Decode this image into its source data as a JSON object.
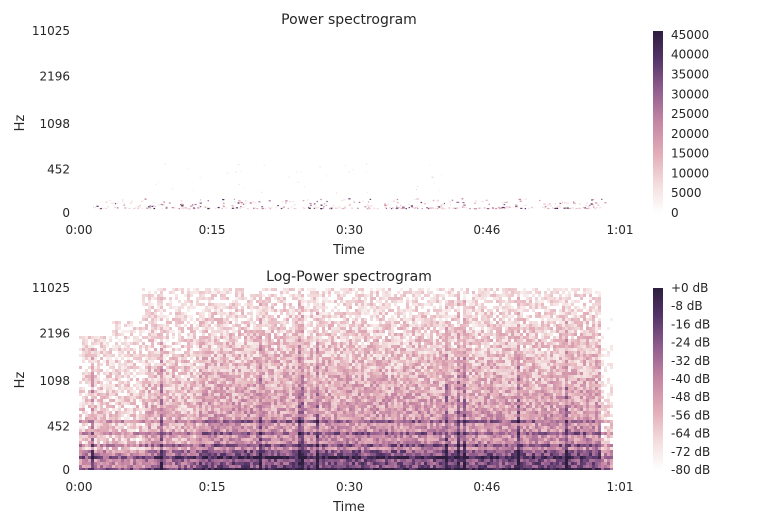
{
  "chart_data": [
    {
      "type": "heatmap",
      "title": "Power spectrogram",
      "xlabel": "Time",
      "ylabel": "Hz",
      "x_ticks": [
        "0:00",
        "0:15",
        "0:30",
        "0:46",
        "1:01"
      ],
      "x_range_seconds": [
        0,
        61
      ],
      "y_ticks": [
        "0",
        "452",
        "1098",
        "2196",
        "11025"
      ],
      "y_range_hz": [
        0,
        11025
      ],
      "y_scale": "log",
      "colorbar": {
        "ticks": [
          "0",
          "5000",
          "10000",
          "15000",
          "20000",
          "25000",
          "30000",
          "35000",
          "40000",
          "45000"
        ],
        "range": [
          0,
          46000
        ]
      },
      "colormap": [
        "#ffffff",
        "#f4dfdf",
        "#e3aeb8",
        "#c486a4",
        "#8f5c8d",
        "#533467",
        "#2d1e3e"
      ],
      "grid": false
    },
    {
      "type": "heatmap",
      "title": "Log-Power spectrogram",
      "xlabel": "Time",
      "ylabel": "Hz",
      "x_ticks": [
        "0:00",
        "0:15",
        "0:30",
        "0:46",
        "1:01"
      ],
      "x_range_seconds": [
        0,
        61
      ],
      "y_ticks": [
        "0",
        "452",
        "1098",
        "2196",
        "11025"
      ],
      "y_range_hz": [
        0,
        11025
      ],
      "y_scale": "log",
      "colorbar": {
        "ticks": [
          "+0 dB",
          "-8 dB",
          "-16 dB",
          "-24 dB",
          "-32 dB",
          "-40 dB",
          "-48 dB",
          "-56 dB",
          "-64 dB",
          "-72 dB",
          "-80 dB"
        ],
        "range": [
          -80,
          0
        ]
      },
      "colormap": [
        "#ffffff",
        "#f4dfdf",
        "#e3aeb8",
        "#c486a4",
        "#8f5c8d",
        "#533467",
        "#2d1e3e"
      ],
      "grid": false
    }
  ]
}
